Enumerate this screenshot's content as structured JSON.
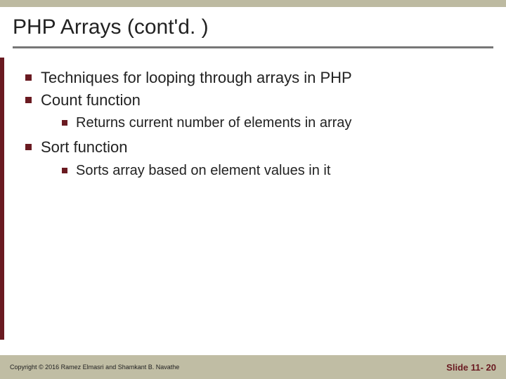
{
  "colors": {
    "top_bar": "#bdbaa1",
    "side_stripe": "#6a1a21",
    "footer_bar": "#c0bda4",
    "bullet": "#6a1a21",
    "slide_num": "#6a1a21",
    "title_underline": "#777777",
    "text": "#222222"
  },
  "title": "PHP Arrays (cont'd. )",
  "bullets": [
    {
      "text": "Techniques for looping through arrays in PHP",
      "children": []
    },
    {
      "text": "Count function",
      "children": [
        {
          "text": "Returns current number of elements in array"
        }
      ]
    },
    {
      "text": "Sort function",
      "children": [
        {
          "text": "Sorts array based on element values in it"
        }
      ]
    }
  ],
  "footer": {
    "copyright": "Copyright © 2016 Ramez Elmasri and Shamkant B. Navathe",
    "slide_label": "Slide 11- 20"
  }
}
